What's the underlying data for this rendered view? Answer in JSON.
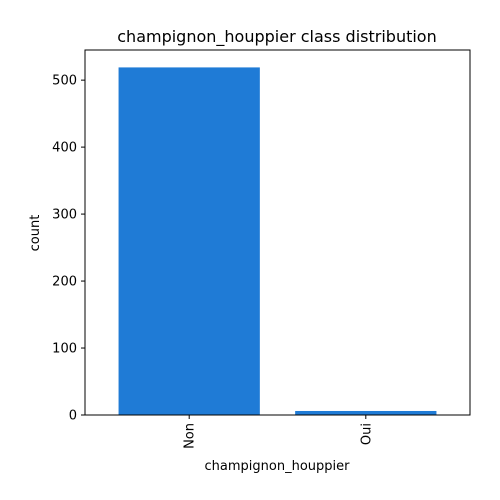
{
  "chart_data": {
    "type": "bar",
    "title": "champignon_houppier class distribution",
    "xlabel": "champignon_houppier",
    "ylabel": "count",
    "categories": [
      "Non",
      "Oui"
    ],
    "values": [
      519,
      6
    ],
    "ylim": [
      0,
      545
    ],
    "yticks": [
      0,
      100,
      200,
      300,
      400,
      500
    ],
    "ytick_labels": [
      "0",
      "100",
      "200",
      "300",
      "400",
      "500"
    ],
    "grid": false,
    "bar_color": "#1f7bd6"
  }
}
